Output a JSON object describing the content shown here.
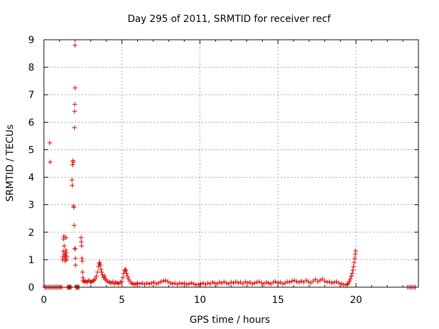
{
  "chart_data": {
    "type": "scatter",
    "title": "Day 295 of 2011, SRMTID for receiver recf",
    "xlabel": "GPS time / hours",
    "ylabel": "SRMTID / TECUs",
    "xlim": [
      0,
      24
    ],
    "ylim": [
      0,
      9
    ],
    "xticks": [
      0,
      5,
      10,
      15,
      20
    ],
    "yticks": [
      0,
      1,
      2,
      3,
      4,
      5,
      6,
      7,
      8,
      9
    ],
    "grid": true,
    "marker": "+",
    "color": "#dd0000",
    "series": [
      {
        "name": "SRMTID",
        "points": [
          [
            0.05,
            0
          ],
          [
            0.12,
            0
          ],
          [
            0.2,
            0
          ],
          [
            0.28,
            0
          ],
          [
            0.36,
            0
          ],
          [
            0.44,
            0
          ],
          [
            0.52,
            0
          ],
          [
            0.6,
            0
          ],
          [
            0.68,
            0
          ],
          [
            0.76,
            0
          ],
          [
            0.84,
            0
          ],
          [
            0.92,
            0
          ],
          [
            1.0,
            0
          ],
          [
            1.08,
            0
          ],
          [
            1.16,
            0
          ],
          [
            0.38,
            5.25
          ],
          [
            0.4,
            4.55
          ],
          [
            1.2,
            1.0
          ],
          [
            1.22,
            1.1
          ],
          [
            1.24,
            1.3
          ],
          [
            1.26,
            1.75
          ],
          [
            1.28,
            1.85
          ],
          [
            1.3,
            1.5
          ],
          [
            1.32,
            1.2
          ],
          [
            1.34,
            1.05
          ],
          [
            1.36,
            0.95
          ],
          [
            1.38,
            1.15
          ],
          [
            1.4,
            1.35
          ],
          [
            1.42,
            1.8
          ],
          [
            1.44,
            1.25
          ],
          [
            1.46,
            1.0
          ],
          [
            1.48,
            1.1
          ],
          [
            1.5,
            0.0
          ],
          [
            1.55,
            0
          ],
          [
            1.6,
            0
          ],
          [
            1.65,
            0
          ],
          [
            1.7,
            0
          ],
          [
            1.75,
            0
          ],
          [
            1.8,
            3.9
          ],
          [
            1.82,
            3.7
          ],
          [
            1.84,
            4.45
          ],
          [
            1.86,
            4.6
          ],
          [
            1.88,
            4.55
          ],
          [
            1.9,
            2.95
          ],
          [
            1.92,
            2.9
          ],
          [
            1.94,
            2.25
          ],
          [
            1.96,
            5.8
          ],
          [
            1.97,
            6.4
          ],
          [
            1.98,
            6.65
          ],
          [
            1.99,
            8.8
          ],
          [
            2.0,
            7.25
          ],
          [
            2.01,
            1.4
          ],
          [
            2.02,
            1.05
          ],
          [
            2.03,
            0.8
          ],
          [
            1.97,
            1.4
          ],
          [
            2.05,
            0
          ],
          [
            2.1,
            0
          ],
          [
            2.15,
            0
          ],
          [
            2.2,
            0
          ],
          [
            2.25,
            0
          ],
          [
            2.38,
            1.8
          ],
          [
            2.4,
            1.65
          ],
          [
            2.42,
            1.5
          ],
          [
            2.44,
            1.05
          ],
          [
            2.46,
            0.95
          ],
          [
            2.48,
            0.55
          ],
          [
            2.5,
            0.35
          ],
          [
            2.52,
            0.25
          ],
          [
            2.56,
            0.2
          ],
          [
            2.64,
            0.22
          ],
          [
            2.72,
            0.18
          ],
          [
            2.8,
            0.2
          ],
          [
            2.88,
            0.25
          ],
          [
            2.96,
            0.2
          ],
          [
            3.04,
            0.18
          ],
          [
            3.12,
            0.22
          ],
          [
            3.2,
            0.25
          ],
          [
            3.28,
            0.3
          ],
          [
            3.36,
            0.4
          ],
          [
            3.44,
            0.55
          ],
          [
            3.5,
            0.75
          ],
          [
            3.54,
            0.85
          ],
          [
            3.58,
            0.9
          ],
          [
            3.62,
            0.8
          ],
          [
            3.66,
            0.65
          ],
          [
            3.7,
            0.55
          ],
          [
            3.76,
            0.45
          ],
          [
            3.82,
            0.35
          ],
          [
            3.88,
            0.4
          ],
          [
            3.94,
            0.3
          ],
          [
            4.0,
            0.25
          ],
          [
            4.1,
            0.2
          ],
          [
            4.2,
            0.18
          ],
          [
            4.3,
            0.15
          ],
          [
            4.4,
            0.2
          ],
          [
            4.5,
            0.12
          ],
          [
            4.6,
            0.18
          ],
          [
            4.7,
            0.15
          ],
          [
            4.8,
            0.12
          ],
          [
            4.9,
            0.18
          ],
          [
            5.0,
            0.2
          ],
          [
            5.06,
            0.35
          ],
          [
            5.12,
            0.5
          ],
          [
            5.18,
            0.6
          ],
          [
            5.22,
            0.65
          ],
          [
            5.26,
            0.6
          ],
          [
            5.3,
            0.5
          ],
          [
            5.36,
            0.4
          ],
          [
            5.42,
            0.3
          ],
          [
            5.5,
            0.22
          ],
          [
            5.6,
            0.15
          ],
          [
            5.7,
            0.12
          ],
          [
            5.8,
            0.1
          ],
          [
            5.9,
            0.12
          ],
          [
            6.0,
            0.15
          ],
          [
            6.15,
            0.12
          ],
          [
            6.3,
            0.15
          ],
          [
            6.45,
            0.1
          ],
          [
            6.6,
            0.15
          ],
          [
            6.75,
            0.12
          ],
          [
            6.9,
            0.15
          ],
          [
            7.05,
            0.18
          ],
          [
            7.2,
            0.12
          ],
          [
            7.35,
            0.15
          ],
          [
            7.5,
            0.2
          ],
          [
            7.65,
            0.22
          ],
          [
            7.8,
            0.25
          ],
          [
            7.95,
            0.2
          ],
          [
            8.1,
            0.15
          ],
          [
            8.25,
            0.12
          ],
          [
            8.4,
            0.15
          ],
          [
            8.55,
            0.1
          ],
          [
            8.7,
            0.15
          ],
          [
            8.85,
            0.12
          ],
          [
            9.0,
            0.15
          ],
          [
            9.15,
            0.1
          ],
          [
            9.3,
            0.12
          ],
          [
            9.45,
            0.15
          ],
          [
            9.6,
            0.12
          ],
          [
            9.75,
            0.08
          ],
          [
            9.9,
            0.1
          ],
          [
            10.05,
            0.12
          ],
          [
            10.2,
            0.15
          ],
          [
            10.35,
            0.1
          ],
          [
            10.5,
            0.15
          ],
          [
            10.65,
            0.12
          ],
          [
            10.8,
            0.18
          ],
          [
            10.95,
            0.15
          ],
          [
            11.1,
            0.12
          ],
          [
            11.25,
            0.18
          ],
          [
            11.4,
            0.15
          ],
          [
            11.55,
            0.2
          ],
          [
            11.7,
            0.15
          ],
          [
            11.85,
            0.12
          ],
          [
            12.0,
            0.18
          ],
          [
            12.15,
            0.15
          ],
          [
            12.3,
            0.2
          ],
          [
            12.45,
            0.15
          ],
          [
            12.6,
            0.18
          ],
          [
            12.75,
            0.12
          ],
          [
            12.9,
            0.2
          ],
          [
            13.05,
            0.15
          ],
          [
            13.2,
            0.18
          ],
          [
            13.35,
            0.12
          ],
          [
            13.5,
            0.15
          ],
          [
            13.65,
            0.18
          ],
          [
            13.8,
            0.2
          ],
          [
            13.95,
            0.15
          ],
          [
            14.1,
            0.12
          ],
          [
            14.25,
            0.18
          ],
          [
            14.4,
            0.15
          ],
          [
            14.55,
            0.12
          ],
          [
            14.7,
            0.18
          ],
          [
            14.85,
            0.2
          ],
          [
            15.0,
            0.15
          ],
          [
            15.15,
            0.18
          ],
          [
            15.3,
            0.12
          ],
          [
            15.45,
            0.15
          ],
          [
            15.6,
            0.2
          ],
          [
            15.75,
            0.18
          ],
          [
            15.9,
            0.22
          ],
          [
            16.05,
            0.25
          ],
          [
            16.2,
            0.2
          ],
          [
            16.35,
            0.18
          ],
          [
            16.5,
            0.22
          ],
          [
            16.65,
            0.18
          ],
          [
            16.8,
            0.25
          ],
          [
            16.95,
            0.2
          ],
          [
            17.1,
            0.15
          ],
          [
            17.25,
            0.22
          ],
          [
            17.4,
            0.28
          ],
          [
            17.55,
            0.2
          ],
          [
            17.7,
            0.25
          ],
          [
            17.85,
            0.3
          ],
          [
            18.0,
            0.22
          ],
          [
            18.15,
            0.18
          ],
          [
            18.3,
            0.2
          ],
          [
            18.45,
            0.15
          ],
          [
            18.6,
            0.18
          ],
          [
            18.75,
            0.2
          ],
          [
            18.9,
            0.15
          ],
          [
            19.05,
            0.12
          ],
          [
            19.2,
            0.1
          ],
          [
            19.35,
            0.08
          ],
          [
            19.45,
            0.1
          ],
          [
            19.52,
            0.15
          ],
          [
            19.58,
            0.22
          ],
          [
            19.64,
            0.3
          ],
          [
            19.7,
            0.4
          ],
          [
            19.75,
            0.5
          ],
          [
            19.8,
            0.62
          ],
          [
            19.84,
            0.75
          ],
          [
            19.88,
            0.9
          ],
          [
            19.92,
            1.05
          ],
          [
            19.95,
            1.2
          ],
          [
            19.98,
            1.32
          ],
          [
            23.3,
            0
          ],
          [
            23.4,
            0
          ],
          [
            23.5,
            0
          ],
          [
            23.6,
            0
          ],
          [
            23.7,
            0
          ],
          [
            23.8,
            0
          ]
        ]
      }
    ]
  }
}
